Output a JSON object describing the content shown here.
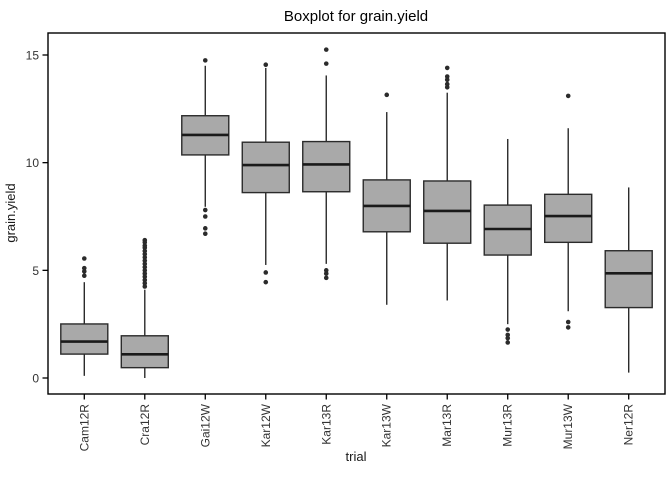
{
  "chart_data": {
    "type": "boxplot",
    "title": "Boxplot for grain.yield",
    "xlabel": "trial",
    "ylabel": "grain.yield",
    "ylim": [
      0,
      15
    ],
    "yticks": [
      0,
      5,
      10,
      15
    ],
    "grid": "off",
    "panel_border": "on",
    "categories": [
      "Cam12R",
      "Cra12R",
      "Gai12W",
      "Kar12W",
      "Kar13R",
      "Kar13W",
      "Mar13R",
      "Mur13R",
      "Mur13W",
      "Ner12R"
    ],
    "boxes": [
      {
        "label": "Cam12R",
        "whisker_low": 0.1,
        "q1": 1.11,
        "median": 1.69,
        "q3": 2.51,
        "whisker_high": 4.45,
        "outliers": [
          5.55,
          5.1,
          4.95,
          4.75
        ]
      },
      {
        "label": "Cra12R",
        "whisker_low": 0.0,
        "q1": 0.48,
        "median": 1.1,
        "q3": 1.96,
        "whisker_high": 4.1,
        "outliers": [
          6.4,
          6.3,
          6.15,
          6.05,
          5.9,
          5.75,
          5.6,
          5.45,
          5.3,
          5.15,
          5.0,
          4.85,
          4.7,
          4.55,
          4.4,
          4.25
        ]
      },
      {
        "label": "Gai12W",
        "whisker_low": 7.95,
        "q1": 10.36,
        "median": 11.29,
        "q3": 12.18,
        "whisker_high": 14.5,
        "outliers": [
          14.75,
          7.8,
          7.5,
          6.95,
          6.7
        ]
      },
      {
        "label": "Kar12W",
        "whisker_low": 5.25,
        "q1": 8.61,
        "median": 9.89,
        "q3": 10.95,
        "whisker_high": 14.4,
        "outliers": [
          14.55,
          4.9,
          4.45
        ]
      },
      {
        "label": "Kar13R",
        "whisker_low": 5.3,
        "q1": 8.65,
        "median": 9.92,
        "q3": 10.98,
        "whisker_high": 14.05,
        "outliers": [
          15.25,
          14.6,
          5.0,
          4.85,
          4.65
        ]
      },
      {
        "label": "Kar13W",
        "whisker_low": 3.4,
        "q1": 6.79,
        "median": 7.99,
        "q3": 9.2,
        "whisker_high": 12.35,
        "outliers": [
          13.15
        ]
      },
      {
        "label": "Mar13R",
        "whisker_low": 3.6,
        "q1": 6.26,
        "median": 7.76,
        "q3": 9.15,
        "whisker_high": 13.25,
        "outliers": [
          14.4,
          14.0,
          13.85,
          13.65,
          13.5
        ]
      },
      {
        "label": "Mur13R",
        "whisker_low": 2.5,
        "q1": 5.71,
        "median": 6.92,
        "q3": 8.03,
        "whisker_high": 11.1,
        "outliers": [
          2.25,
          2.0,
          1.85,
          1.65
        ]
      },
      {
        "label": "Mur13W",
        "whisker_low": 3.1,
        "q1": 6.3,
        "median": 7.52,
        "q3": 8.53,
        "whisker_high": 11.6,
        "outliers": [
          13.1,
          2.6,
          2.35
        ]
      },
      {
        "label": "Ner12R",
        "whisker_low": 0.25,
        "q1": 3.27,
        "median": 4.86,
        "q3": 5.91,
        "whisker_high": 8.85,
        "outliers": []
      }
    ],
    "colors": {
      "box_fill": "#a9a9a9",
      "box_stroke": "#2b2b2b",
      "median_stroke": "#1a1a1a",
      "outlier_fill": "#2b2b2b",
      "axis_stroke": "#000000"
    }
  }
}
